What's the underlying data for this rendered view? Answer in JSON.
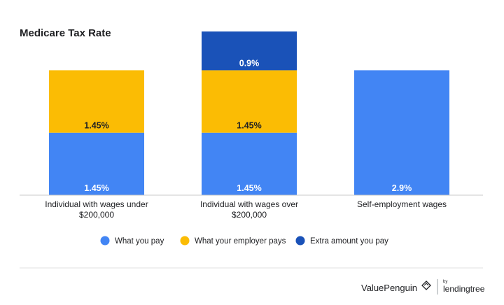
{
  "chart_data": {
    "type": "bar",
    "stacked": true,
    "title": "Medicare Tax Rate",
    "categories": [
      [
        "Individual with wages under",
        "$200,000"
      ],
      [
        "Individual with wages over",
        "$200,000"
      ],
      [
        "Self-employment wages"
      ]
    ],
    "series": [
      {
        "name": "What you pay",
        "color": "#4285F4",
        "values": [
          1.45,
          1.45,
          2.9
        ],
        "labels": [
          "1.45%",
          "1.45%",
          "2.9%"
        ]
      },
      {
        "name": "What your employer pays",
        "color": "#FBBC04",
        "values": [
          1.45,
          1.45,
          0
        ],
        "labels": [
          "1.45%",
          "1.45%",
          ""
        ]
      },
      {
        "name": "Extra amount you pay",
        "color": "#1A52B8",
        "values": [
          0,
          0.9,
          0
        ],
        "labels": [
          "",
          "0.9%",
          ""
        ]
      }
    ],
    "ylim": [
      0,
      3.8
    ],
    "legend_position": "bottom",
    "grid": false
  },
  "footer": {
    "brand": "ValuePenguin",
    "partner_small": "by",
    "partner": "lendingtree"
  }
}
